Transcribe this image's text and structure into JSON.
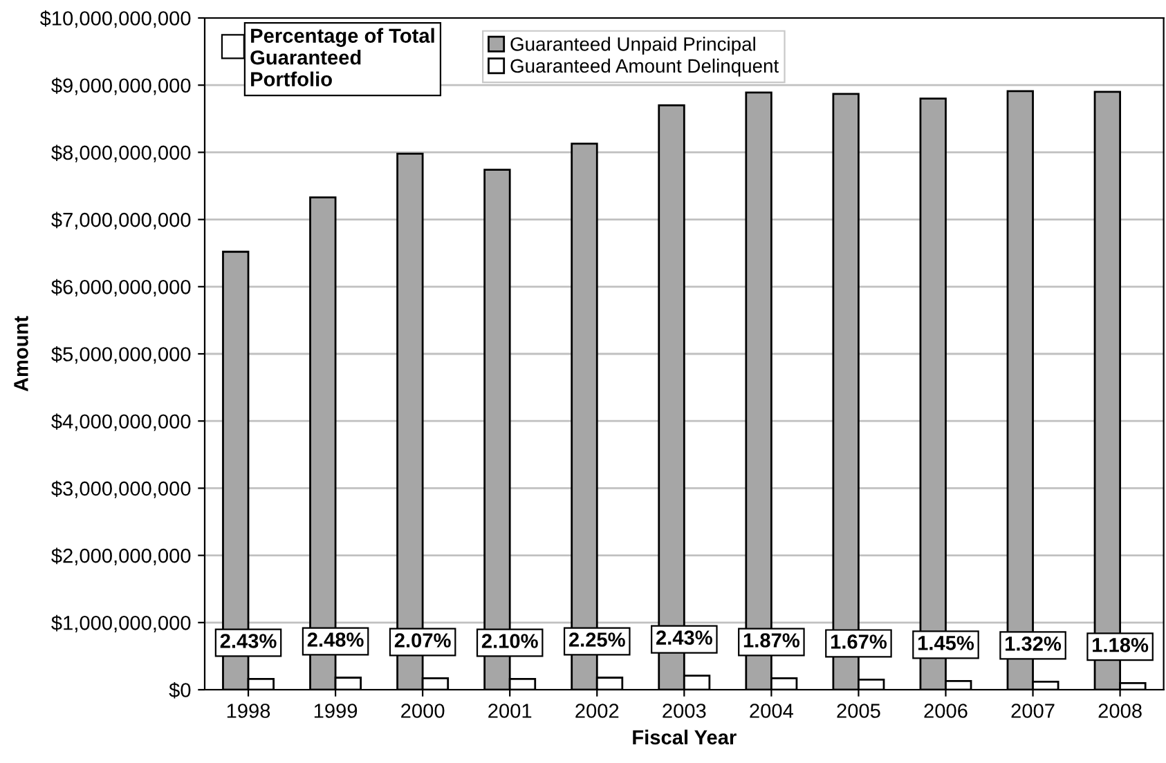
{
  "chart_data": {
    "type": "bar",
    "xlabel": "Fiscal Year",
    "ylabel": "Amount",
    "categories": [
      "1998",
      "1999",
      "2000",
      "2001",
      "2002",
      "2003",
      "2004",
      "2005",
      "2006",
      "2007",
      "2008"
    ],
    "series": [
      {
        "name": "Guaranteed Unpaid Principal",
        "color": "#a6a6a6",
        "values": [
          6520000000,
          7330000000,
          7980000000,
          7740000000,
          8130000000,
          8700000000,
          8890000000,
          8870000000,
          8800000000,
          8910000000,
          8900000000
        ]
      },
      {
        "name": "Guaranteed Amount Delinquent",
        "color": "#ffffff",
        "values": [
          160000000,
          180000000,
          170000000,
          160000000,
          180000000,
          210000000,
          170000000,
          150000000,
          130000000,
          120000000,
          100000000
        ]
      }
    ],
    "ylim": [
      0,
      10000000000
    ],
    "yticks": [
      {
        "value": 0,
        "label": "$0"
      },
      {
        "value": 1000000000,
        "label": "$1,000,000,000"
      },
      {
        "value": 2000000000,
        "label": "$2,000,000,000"
      },
      {
        "value": 3000000000,
        "label": "$3,000,000,000"
      },
      {
        "value": 4000000000,
        "label": "$4,000,000,000"
      },
      {
        "value": 5000000000,
        "label": "$5,000,000,000"
      },
      {
        "value": 6000000000,
        "label": "$6,000,000,000"
      },
      {
        "value": 7000000000,
        "label": "$7,000,000,000"
      },
      {
        "value": 8000000000,
        "label": "$8,000,000,000"
      },
      {
        "value": 9000000000,
        "label": "$9,000,000,000"
      },
      {
        "value": 10000000000,
        "label": "$10,000,000,000"
      }
    ],
    "grid": "y",
    "legend": "top left",
    "annotations": [
      "Percentage of Total\nGuaranteed\nPortfolio",
      {
        "text": "2.43%",
        "x": "1998",
        "y": 160000000
      },
      {
        "text": "2.48%",
        "x": "1999",
        "y": 180000000
      },
      {
        "text": "2.07%",
        "x": "2000",
        "y": 170000000
      },
      {
        "text": "2.10%",
        "x": "2001",
        "y": 160000000
      },
      {
        "text": "2.25%",
        "x": "2002",
        "y": 180000000
      },
      {
        "text": "2.43%",
        "x": "2003",
        "y": 210000000
      },
      {
        "text": "1.87%",
        "x": "2004",
        "y": 170000000
      },
      {
        "text": "1.67%",
        "x": "2005",
        "y": 150000000
      },
      {
        "text": "1.45%",
        "x": "2006",
        "y": 130000000
      },
      {
        "text": "1.32%",
        "x": "2007",
        "y": 120000000
      },
      {
        "text": "1.18%",
        "x": "2008",
        "y": 100000000
      }
    ]
  }
}
